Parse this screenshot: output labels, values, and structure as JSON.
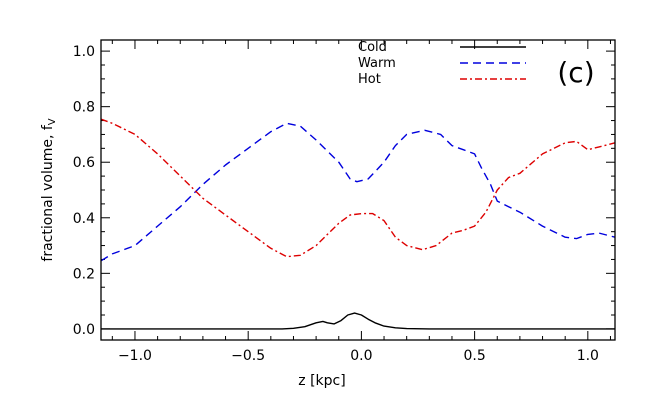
{
  "chart_data": {
    "type": "line",
    "title": "",
    "panel_label": "(c)",
    "xlabel": "z [kpc]",
    "ylabel": "fractional volume, f",
    "ylabel_subscript": "V",
    "xlim": [
      -1.15,
      1.12
    ],
    "ylim": [
      -0.04,
      1.04
    ],
    "xticks": [
      -1.0,
      -0.5,
      0.0,
      0.5,
      1.0
    ],
    "xtick_labels": [
      "−1.0",
      "−0.5",
      "0.0",
      "0.5",
      "1.0"
    ],
    "yticks": [
      0.0,
      0.2,
      0.4,
      0.6,
      0.8,
      1.0
    ],
    "ytick_labels": [
      "0.0",
      "0.2",
      "0.4",
      "0.6",
      "0.8",
      "1.0"
    ],
    "legend_position": "top-right",
    "series": [
      {
        "name": "Cold",
        "color": "#000000",
        "style": "solid",
        "points": [
          [
            -1.15,
            0.0
          ],
          [
            -0.35,
            0.0
          ],
          [
            -0.3,
            0.002
          ],
          [
            -0.25,
            0.008
          ],
          [
            -0.2,
            0.022
          ],
          [
            -0.17,
            0.027
          ],
          [
            -0.15,
            0.022
          ],
          [
            -0.12,
            0.018
          ],
          [
            -0.09,
            0.03
          ],
          [
            -0.06,
            0.05
          ],
          [
            -0.03,
            0.057
          ],
          [
            0.0,
            0.05
          ],
          [
            0.03,
            0.035
          ],
          [
            0.06,
            0.022
          ],
          [
            0.1,
            0.01
          ],
          [
            0.15,
            0.004
          ],
          [
            0.2,
            0.001
          ],
          [
            0.3,
            0.0
          ],
          [
            1.12,
            0.0
          ]
        ]
      },
      {
        "name": "Warm",
        "color": "#0000dd",
        "style": "dashed",
        "points": [
          [
            -1.15,
            0.245
          ],
          [
            -1.1,
            0.27
          ],
          [
            -1.0,
            0.3
          ],
          [
            -0.9,
            0.37
          ],
          [
            -0.8,
            0.44
          ],
          [
            -0.7,
            0.52
          ],
          [
            -0.6,
            0.59
          ],
          [
            -0.5,
            0.65
          ],
          [
            -0.4,
            0.71
          ],
          [
            -0.33,
            0.74
          ],
          [
            -0.27,
            0.73
          ],
          [
            -0.2,
            0.68
          ],
          [
            -0.15,
            0.64
          ],
          [
            -0.1,
            0.6
          ],
          [
            -0.05,
            0.54
          ],
          [
            -0.02,
            0.53
          ],
          [
            0.03,
            0.54
          ],
          [
            0.1,
            0.6
          ],
          [
            0.15,
            0.66
          ],
          [
            0.2,
            0.7
          ],
          [
            0.28,
            0.715
          ],
          [
            0.35,
            0.7
          ],
          [
            0.4,
            0.66
          ],
          [
            0.45,
            0.645
          ],
          [
            0.5,
            0.63
          ],
          [
            0.53,
            0.58
          ],
          [
            0.57,
            0.52
          ],
          [
            0.6,
            0.46
          ],
          [
            0.65,
            0.44
          ],
          [
            0.7,
            0.42
          ],
          [
            0.8,
            0.37
          ],
          [
            0.9,
            0.33
          ],
          [
            0.95,
            0.325
          ],
          [
            1.0,
            0.34
          ],
          [
            1.05,
            0.345
          ],
          [
            1.12,
            0.33
          ]
        ]
      },
      {
        "name": "Hot",
        "color": "#dd0000",
        "style": "dashdot",
        "points": [
          [
            -1.15,
            0.755
          ],
          [
            -1.1,
            0.74
          ],
          [
            -1.0,
            0.7
          ],
          [
            -0.9,
            0.63
          ],
          [
            -0.8,
            0.55
          ],
          [
            -0.7,
            0.47
          ],
          [
            -0.6,
            0.41
          ],
          [
            -0.5,
            0.35
          ],
          [
            -0.4,
            0.29
          ],
          [
            -0.33,
            0.26
          ],
          [
            -0.27,
            0.265
          ],
          [
            -0.2,
            0.3
          ],
          [
            -0.15,
            0.34
          ],
          [
            -0.1,
            0.38
          ],
          [
            -0.05,
            0.41
          ],
          [
            0.0,
            0.415
          ],
          [
            0.05,
            0.415
          ],
          [
            0.1,
            0.39
          ],
          [
            0.15,
            0.33
          ],
          [
            0.2,
            0.3
          ],
          [
            0.27,
            0.285
          ],
          [
            0.33,
            0.3
          ],
          [
            0.4,
            0.345
          ],
          [
            0.45,
            0.355
          ],
          [
            0.5,
            0.37
          ],
          [
            0.55,
            0.42
          ],
          [
            0.6,
            0.5
          ],
          [
            0.65,
            0.545
          ],
          [
            0.7,
            0.56
          ],
          [
            0.8,
            0.63
          ],
          [
            0.9,
            0.67
          ],
          [
            0.95,
            0.675
          ],
          [
            1.0,
            0.645
          ],
          [
            1.05,
            0.655
          ],
          [
            1.12,
            0.67
          ]
        ]
      }
    ]
  }
}
